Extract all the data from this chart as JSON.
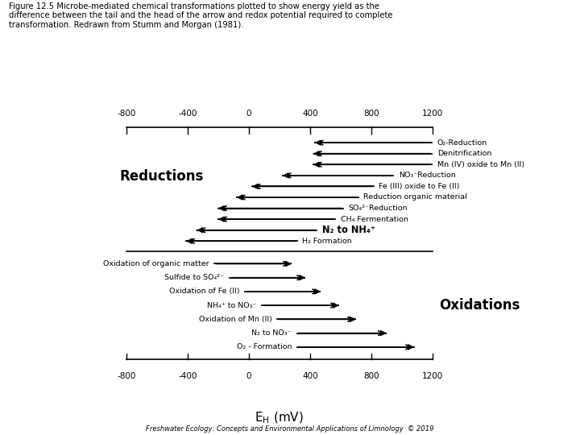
{
  "title_text": "Figure 12.5 Microbe-mediated chemical transformations plotted to show energy yield as the\ndifference between the tail and the head of the arrow and redox potential required to complete\ntransformation. Redrawn from Stumm and Morgan (1981).",
  "footer": "Freshwater Ecology: Concepts and Environmental Applications of Limnology  © 2019",
  "xlim": [
    -1000,
    1500
  ],
  "xticks": [
    -800,
    -400,
    0,
    400,
    800,
    1200
  ],
  "reductions_label": "Reductions",
  "oxidations_label": "Oxidations",
  "reductions": [
    {
      "label": "O₂-Reduction",
      "xstart": 1200,
      "xend": 430
    },
    {
      "label": "Denitrification",
      "xstart": 1200,
      "xend": 420
    },
    {
      "label": "Mn (IV) oxide to Mn (II)",
      "xstart": 1200,
      "xend": 420
    },
    {
      "label": "NO₃⁻Reduction",
      "xstart": 950,
      "xend": 220
    },
    {
      "label": "Fe (III) oxide to Fe (II)",
      "xstart": 820,
      "xend": 20
    },
    {
      "label": "Reduction organic material",
      "xstart": 720,
      "xend": -80
    },
    {
      "label": "SO₄²⁻Reduction",
      "xstart": 620,
      "xend": -200
    },
    {
      "label": "CH₄ Fermentation",
      "xstart": 570,
      "xend": -200
    },
    {
      "label": "N₂ to NH₄⁺",
      "xstart": 450,
      "xend": -340,
      "bold": true
    },
    {
      "label": "H₂ Formation",
      "xstart": 320,
      "xend": -410
    }
  ],
  "oxidations": [
    {
      "label": "Oxidation of organic matter",
      "xstart": -230,
      "xend": 280
    },
    {
      "label": "Sulfide to SO₄²⁻",
      "xstart": -130,
      "xend": 370
    },
    {
      "label": "Oxidation of Fe (II)",
      "xstart": -30,
      "xend": 470
    },
    {
      "label": "NH₄⁺ to NO₃⁻",
      "xstart": 80,
      "xend": 590
    },
    {
      "label": "Oxidation of Mn (II)",
      "xstart": 180,
      "xend": 700
    },
    {
      "label": "N₂ to NO₃⁻",
      "xstart": 310,
      "xend": 900
    },
    {
      "label": "O₂ - Formation",
      "xstart": 310,
      "xend": 1080
    }
  ]
}
